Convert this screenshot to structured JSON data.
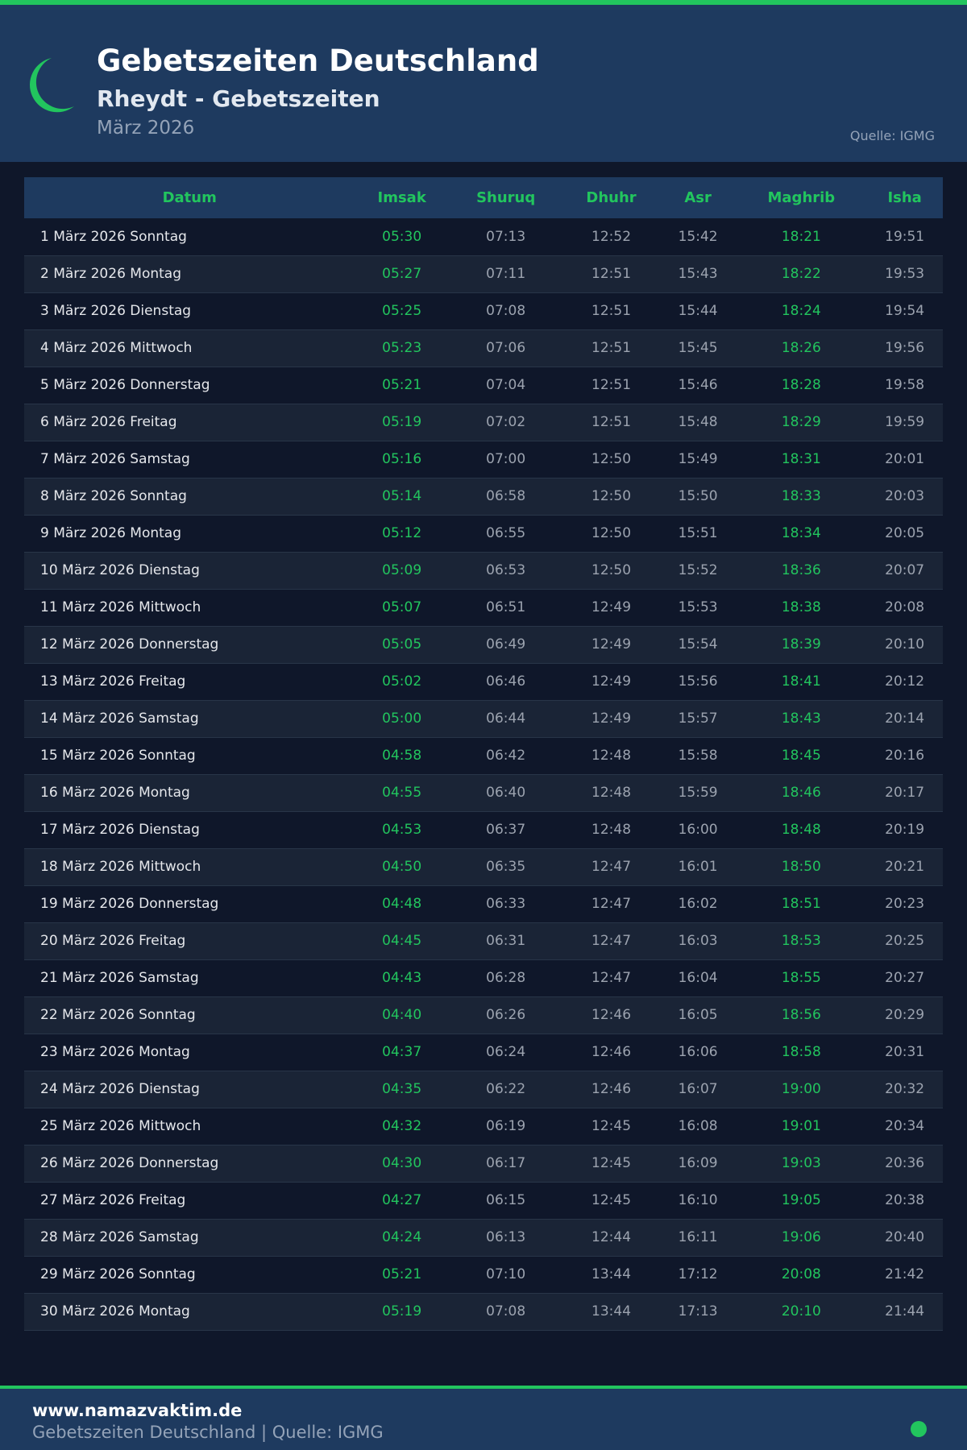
{
  "header": {
    "title": "Gebetszeiten Deutschland",
    "subtitle": "Rheydt - Gebetszeiten",
    "month": "März 2026",
    "source": "Quelle: IGMG",
    "icon": "crescent-moon-icon"
  },
  "colors": {
    "accent": "#22c55e",
    "header_bg": "#1e3a5f",
    "page_bg": "#0f172a"
  },
  "table": {
    "columns": [
      "Datum",
      "Imsak",
      "Shuruq",
      "Dhuhr",
      "Asr",
      "Maghrib",
      "Isha"
    ],
    "rows": [
      [
        "1 März 2026 Sonntag",
        "05:30",
        "07:13",
        "12:52",
        "15:42",
        "18:21",
        "19:51"
      ],
      [
        "2 März 2026 Montag",
        "05:27",
        "07:11",
        "12:51",
        "15:43",
        "18:22",
        "19:53"
      ],
      [
        "3 März 2026 Dienstag",
        "05:25",
        "07:08",
        "12:51",
        "15:44",
        "18:24",
        "19:54"
      ],
      [
        "4 März 2026 Mittwoch",
        "05:23",
        "07:06",
        "12:51",
        "15:45",
        "18:26",
        "19:56"
      ],
      [
        "5 März 2026 Donnerstag",
        "05:21",
        "07:04",
        "12:51",
        "15:46",
        "18:28",
        "19:58"
      ],
      [
        "6 März 2026 Freitag",
        "05:19",
        "07:02",
        "12:51",
        "15:48",
        "18:29",
        "19:59"
      ],
      [
        "7 März 2026 Samstag",
        "05:16",
        "07:00",
        "12:50",
        "15:49",
        "18:31",
        "20:01"
      ],
      [
        "8 März 2026 Sonntag",
        "05:14",
        "06:58",
        "12:50",
        "15:50",
        "18:33",
        "20:03"
      ],
      [
        "9 März 2026 Montag",
        "05:12",
        "06:55",
        "12:50",
        "15:51",
        "18:34",
        "20:05"
      ],
      [
        "10 März 2026 Dienstag",
        "05:09",
        "06:53",
        "12:50",
        "15:52",
        "18:36",
        "20:07"
      ],
      [
        "11 März 2026 Mittwoch",
        "05:07",
        "06:51",
        "12:49",
        "15:53",
        "18:38",
        "20:08"
      ],
      [
        "12 März 2026 Donnerstag",
        "05:05",
        "06:49",
        "12:49",
        "15:54",
        "18:39",
        "20:10"
      ],
      [
        "13 März 2026 Freitag",
        "05:02",
        "06:46",
        "12:49",
        "15:56",
        "18:41",
        "20:12"
      ],
      [
        "14 März 2026 Samstag",
        "05:00",
        "06:44",
        "12:49",
        "15:57",
        "18:43",
        "20:14"
      ],
      [
        "15 März 2026 Sonntag",
        "04:58",
        "06:42",
        "12:48",
        "15:58",
        "18:45",
        "20:16"
      ],
      [
        "16 März 2026 Montag",
        "04:55",
        "06:40",
        "12:48",
        "15:59",
        "18:46",
        "20:17"
      ],
      [
        "17 März 2026 Dienstag",
        "04:53",
        "06:37",
        "12:48",
        "16:00",
        "18:48",
        "20:19"
      ],
      [
        "18 März 2026 Mittwoch",
        "04:50",
        "06:35",
        "12:47",
        "16:01",
        "18:50",
        "20:21"
      ],
      [
        "19 März 2026 Donnerstag",
        "04:48",
        "06:33",
        "12:47",
        "16:02",
        "18:51",
        "20:23"
      ],
      [
        "20 März 2026 Freitag",
        "04:45",
        "06:31",
        "12:47",
        "16:03",
        "18:53",
        "20:25"
      ],
      [
        "21 März 2026 Samstag",
        "04:43",
        "06:28",
        "12:47",
        "16:04",
        "18:55",
        "20:27"
      ],
      [
        "22 März 2026 Sonntag",
        "04:40",
        "06:26",
        "12:46",
        "16:05",
        "18:56",
        "20:29"
      ],
      [
        "23 März 2026 Montag",
        "04:37",
        "06:24",
        "12:46",
        "16:06",
        "18:58",
        "20:31"
      ],
      [
        "24 März 2026 Dienstag",
        "04:35",
        "06:22",
        "12:46",
        "16:07",
        "19:00",
        "20:32"
      ],
      [
        "25 März 2026 Mittwoch",
        "04:32",
        "06:19",
        "12:45",
        "16:08",
        "19:01",
        "20:34"
      ],
      [
        "26 März 2026 Donnerstag",
        "04:30",
        "06:17",
        "12:45",
        "16:09",
        "19:03",
        "20:36"
      ],
      [
        "27 März 2026 Freitag",
        "04:27",
        "06:15",
        "12:45",
        "16:10",
        "19:05",
        "20:38"
      ],
      [
        "28 März 2026 Samstag",
        "04:24",
        "06:13",
        "12:44",
        "16:11",
        "19:06",
        "20:40"
      ],
      [
        "29 März 2026 Sonntag",
        "05:21",
        "07:10",
        "13:44",
        "17:12",
        "20:08",
        "21:42"
      ],
      [
        "30 März 2026 Montag",
        "05:19",
        "07:08",
        "13:44",
        "17:13",
        "20:10",
        "21:44"
      ]
    ]
  },
  "footer": {
    "site": "www.namazvaktim.de",
    "text": "Gebetszeiten Deutschland | Quelle: IGMG"
  }
}
